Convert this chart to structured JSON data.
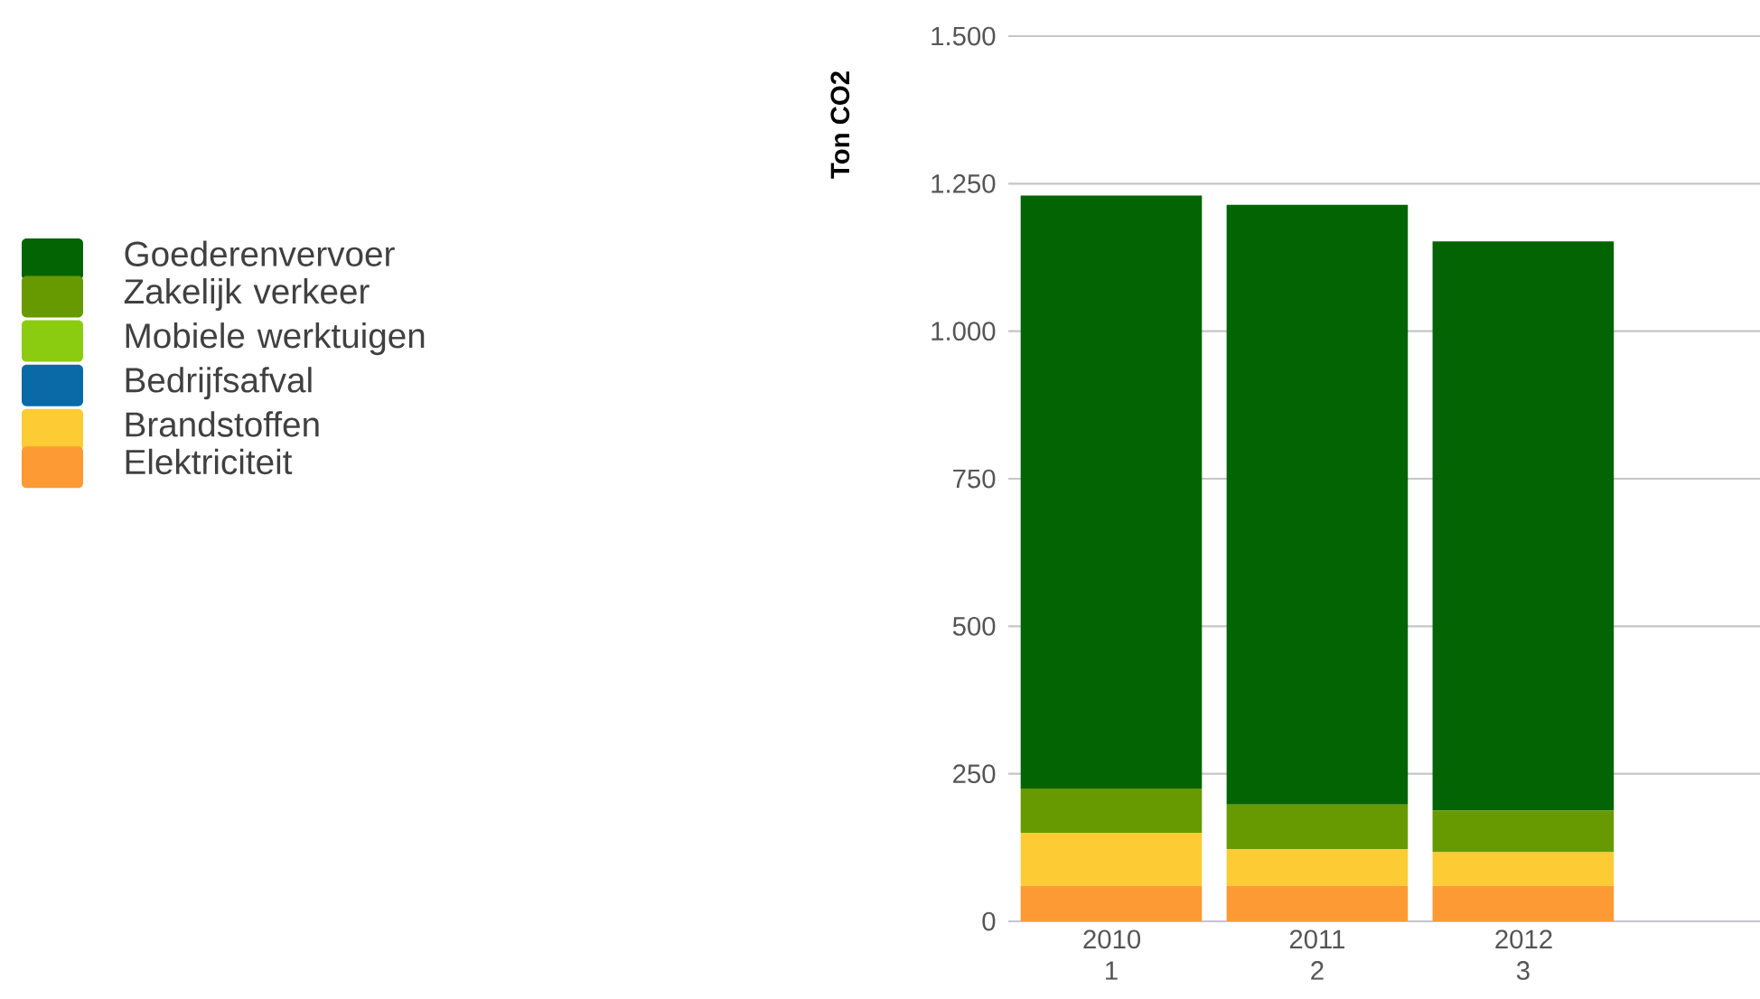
{
  "chart_data": {
    "type": "bar",
    "stacked": true,
    "ylabel": "Ton CO2",
    "categories": [
      "2010 1",
      "2011 2",
      "2012 3"
    ],
    "series": [
      {
        "name": "Elektriciteit",
        "color": "#fd9a33",
        "values": [
          60,
          60,
          60
        ]
      },
      {
        "name": "Brandstoffen",
        "color": "#fdcb33",
        "values": [
          90,
          62,
          57
        ]
      },
      {
        "name": "Bedrijfsafval",
        "color": "#0a6aa8",
        "values": [
          0,
          0,
          0
        ]
      },
      {
        "name": "Mobiele werktuigen",
        "color": "#8ccc10",
        "values": [
          0,
          0,
          0
        ]
      },
      {
        "name": "Zakelijk verkeer",
        "color": "#679a00",
        "values": [
          75,
          76,
          71
        ]
      },
      {
        "name": "Goederenvervoer",
        "color": "#036403",
        "values": [
          1005,
          1016,
          964
        ]
      }
    ],
    "ylim": [
      0,
      1500
    ],
    "yticks": [
      0,
      250,
      500,
      750,
      {
        "value": 1000,
        "label": "1.000"
      },
      {
        "value": 1250,
        "label": "1.250"
      },
      {
        "value": 1500,
        "label": "1.500"
      }
    ],
    "grid": "y",
    "legend": "left"
  }
}
